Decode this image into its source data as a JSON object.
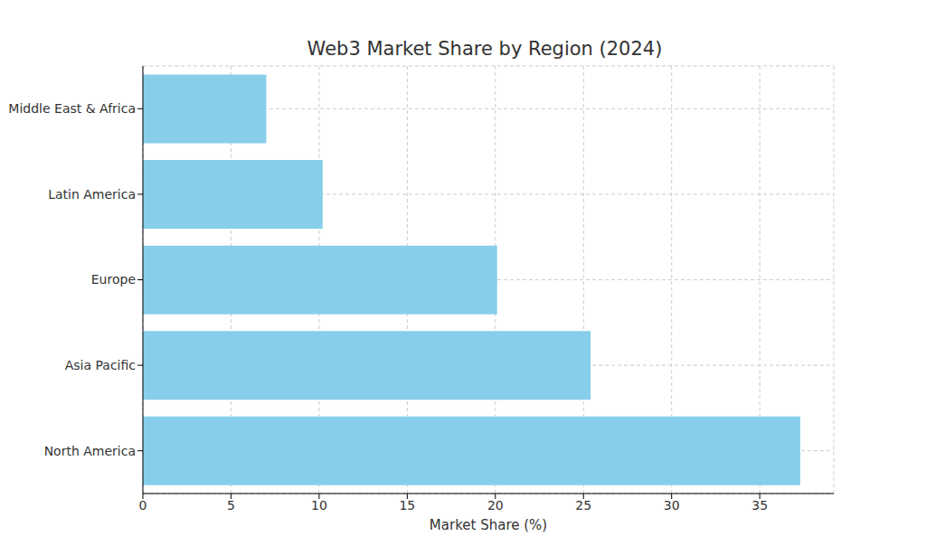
{
  "chart_data": {
    "type": "bar",
    "title": "Web3 Market Share by Region (2024)",
    "x_label": "Market Share (%)",
    "orientation": "horizontal",
    "categories": [
      "Middle East & Africa",
      "Latin America",
      "Europe",
      "Asia Pacific",
      "North America"
    ],
    "values": [
      7.0,
      10.2,
      20.1,
      25.4,
      37.3
    ],
    "color": "#87ceeb",
    "xlim": [
      0,
      39.2
    ],
    "xticks": [
      0,
      5,
      10,
      15,
      20,
      25,
      30,
      35
    ],
    "grid": true
  }
}
